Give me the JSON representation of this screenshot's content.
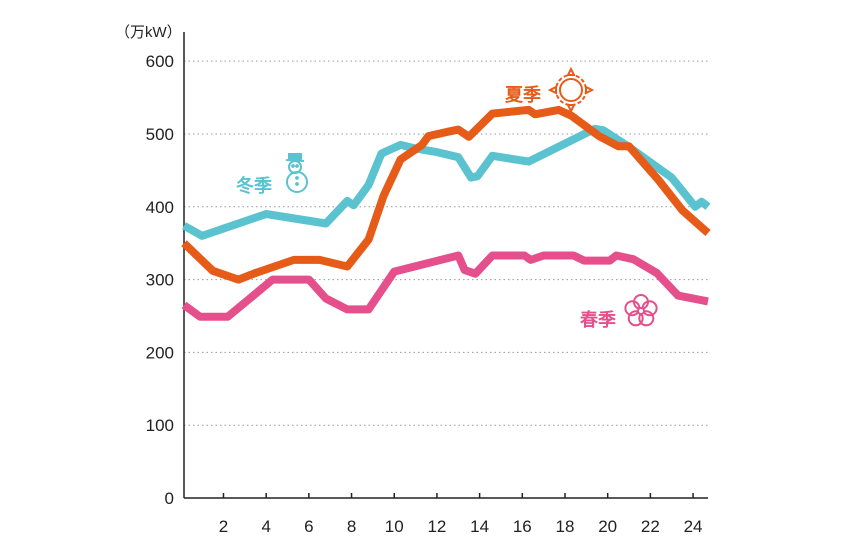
{
  "chart_data": {
    "type": "line",
    "title": "",
    "xlabel": "",
    "ylabel": "",
    "y_unit": "（万kW）",
    "ylim": [
      0,
      640
    ],
    "xlim": [
      0.15,
      24.7
    ],
    "yticks": [
      0,
      100,
      200,
      300,
      400,
      500,
      600
    ],
    "xticks": [
      2,
      4,
      6,
      8,
      10,
      12,
      14,
      16,
      18,
      20,
      22,
      24
    ],
    "grid": true,
    "series": [
      {
        "name": "冬季",
        "color": "#5bc3cf",
        "icon": "snowman-icon",
        "x": [
          0.15,
          1.0,
          4.0,
          6.8,
          7.8,
          8.1,
          8.8,
          9.4,
          10.3,
          11.0,
          12.0,
          13.0,
          13.6,
          13.9,
          14.6,
          16.3,
          19.4,
          19.8,
          21.0,
          23.0,
          24.1,
          24.4,
          24.7
        ],
        "y": [
          374,
          360,
          390,
          377,
          408,
          402,
          430,
          473,
          485,
          480,
          475,
          468,
          440,
          442,
          470,
          462,
          507,
          505,
          482,
          440,
          400,
          407,
          400
        ]
      },
      {
        "name": "夏季",
        "color": "#e75b19",
        "icon": "sun-icon",
        "x": [
          0.15,
          1.5,
          2.7,
          3.5,
          5.3,
          6.5,
          7.8,
          8.8,
          9.5,
          10.3,
          11.3,
          11.6,
          12.5,
          13.0,
          13.5,
          14.6,
          16.3,
          16.6,
          17.7,
          18.3,
          19.6,
          20.5,
          21.0,
          22.4,
          23.5,
          24.7
        ],
        "y": [
          350,
          312,
          300,
          309,
          327,
          327,
          318,
          355,
          415,
          465,
          485,
          497,
          503,
          506,
          496,
          528,
          533,
          527,
          533,
          525,
          497,
          483,
          483,
          436,
          395,
          364
        ]
      },
      {
        "name": "春季",
        "color": "#e5508c",
        "icon": "flower-icon",
        "x": [
          0.15,
          0.9,
          2.2,
          4.3,
          6.0,
          6.8,
          7.8,
          8.8,
          10.0,
          13.0,
          13.3,
          13.8,
          14.6,
          16.1,
          16.4,
          17.0,
          18.4,
          18.9,
          20.1,
          20.4,
          21.2,
          22.3,
          23.3,
          24.7
        ],
        "y": [
          265,
          249,
          249,
          300,
          300,
          274,
          259,
          259,
          311,
          333,
          313,
          308,
          333,
          333,
          327,
          333,
          333,
          326,
          326,
          333,
          328,
          309,
          278,
          270
        ]
      }
    ]
  }
}
